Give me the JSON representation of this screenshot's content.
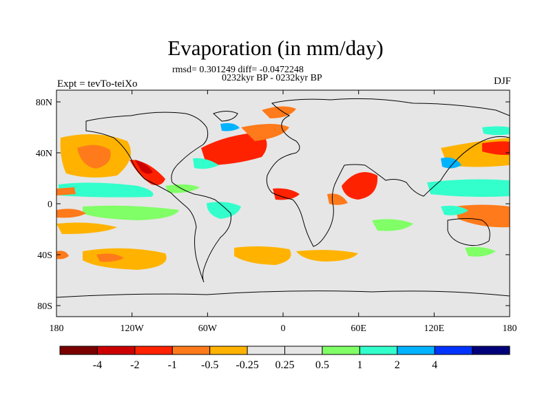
{
  "title": "Evaporation (in mm/day)",
  "stats_line": "rmsd= 0.301249 diff= -0.0472248",
  "period_line": "0232kyr BP - 0232kyr BP",
  "left_label": "Expt = tevTo-teiXo",
  "right_label": "DJF",
  "lat_labels": [
    "80N",
    "40N",
    "0",
    "40S",
    "80S"
  ],
  "lon_labels": [
    "180",
    "120W",
    "60W",
    "0",
    "60E",
    "120E",
    "180"
  ],
  "colorbar": {
    "colors": [
      "#7a0000",
      "#cc0000",
      "#ff2200",
      "#ff7a1a",
      "#ffb300",
      "#e6e6e6",
      "#e6e6e6",
      "#80ff66",
      "#33ffcc",
      "#00b3ff",
      "#0033ff",
      "#00007a"
    ],
    "labels": [
      "-4",
      "-2",
      "-1",
      "-0.5",
      "-0.25",
      "0.25",
      "0.5",
      "1",
      "2",
      "4"
    ]
  },
  "colors": {
    "background": "#e6e6e6",
    "coast": "#000000"
  }
}
